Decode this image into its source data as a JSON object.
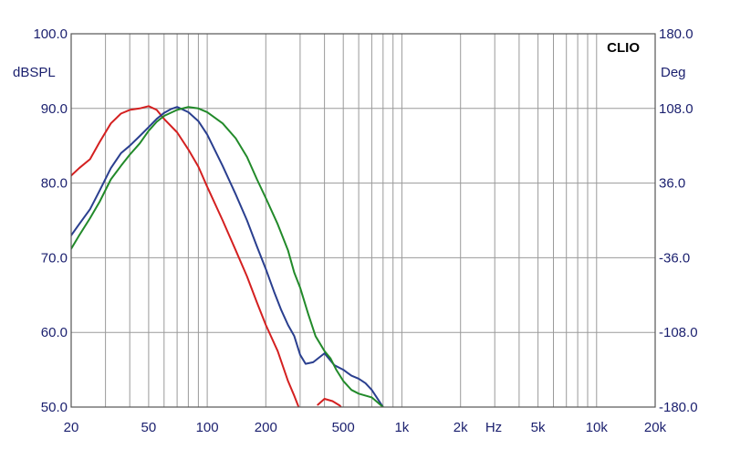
{
  "chart_data": {
    "type": "line",
    "title": "",
    "brand_label": "CLIO",
    "left_axis_label": "dBSPL",
    "right_axis_label": "Deg",
    "x_unit_label": "Hz",
    "x_scale": "log",
    "xlim": [
      20,
      20000
    ],
    "ylim": [
      50,
      100
    ],
    "y2lim": [
      -180,
      180
    ],
    "grid": true,
    "x_tick_labels": [
      {
        "value": 20,
        "label": "20"
      },
      {
        "value": 50,
        "label": "50"
      },
      {
        "value": 100,
        "label": "100"
      },
      {
        "value": 200,
        "label": "200"
      },
      {
        "value": 500,
        "label": "500"
      },
      {
        "value": 1000,
        "label": "1k"
      },
      {
        "value": 2000,
        "label": "2k"
      },
      {
        "value": 5000,
        "label": "5k"
      },
      {
        "value": 10000,
        "label": "10k"
      },
      {
        "value": 20000,
        "label": "20k"
      }
    ],
    "y_tick_labels": [
      {
        "value": 50,
        "label": "50.0"
      },
      {
        "value": 60,
        "label": "60.0"
      },
      {
        "value": 70,
        "label": "70.0"
      },
      {
        "value": 80,
        "label": "80.0"
      },
      {
        "value": 90,
        "label": "90.0"
      },
      {
        "value": 100,
        "label": "100.0"
      }
    ],
    "y2_tick_labels": [
      {
        "value": -180,
        "label": "-180.0"
      },
      {
        "value": -108,
        "label": "-108.0"
      },
      {
        "value": -36,
        "label": "-36.0"
      },
      {
        "value": 36,
        "label": "36.0"
      },
      {
        "value": 108,
        "label": "108.0"
      },
      {
        "value": 180,
        "label": "180.0"
      }
    ],
    "series": [
      {
        "color": "#d42020",
        "segments": [
          [
            [
              20,
              81
            ],
            [
              22,
              82
            ],
            [
              25,
              83.2
            ],
            [
              28,
              85.5
            ],
            [
              32,
              88
            ],
            [
              36,
              89.3
            ],
            [
              40,
              89.8
            ],
            [
              45,
              90
            ],
            [
              50,
              90.3
            ],
            [
              55,
              89.8
            ],
            [
              60,
              88.6
            ],
            [
              70,
              86.8
            ],
            [
              80,
              84.5
            ],
            [
              90,
              82.2
            ],
            [
              100,
              79.5
            ],
            [
              120,
              75
            ],
            [
              140,
              71
            ],
            [
              160,
              67.5
            ],
            [
              180,
              64
            ],
            [
              200,
              61
            ],
            [
              230,
              57.5
            ],
            [
              260,
              53.5
            ],
            [
              280,
              51.5
            ],
            [
              300,
              49.5
            ]
          ],
          [
            [
              370,
              50.3
            ],
            [
              400,
              51.1
            ],
            [
              440,
              50.8
            ],
            [
              480,
              50.2
            ],
            [
              500,
              49.6
            ]
          ]
        ]
      },
      {
        "color": "#2a3f8f",
        "segments": [
          [
            [
              20,
              73
            ],
            [
              22,
              74.5
            ],
            [
              25,
              76.5
            ],
            [
              28,
              79
            ],
            [
              32,
              82
            ],
            [
              36,
              84
            ],
            [
              40,
              85
            ],
            [
              45,
              86.3
            ],
            [
              50,
              87.5
            ],
            [
              55,
              88.6
            ],
            [
              60,
              89.4
            ],
            [
              65,
              89.9
            ],
            [
              70,
              90.2
            ],
            [
              80,
              89.5
            ],
            [
              90,
              88.3
            ],
            [
              100,
              86.5
            ],
            [
              120,
              82.3
            ],
            [
              140,
              78.5
            ],
            [
              160,
              75
            ],
            [
              180,
              71.5
            ],
            [
              200,
              68.5
            ],
            [
              220,
              65.5
            ],
            [
              240,
              63
            ],
            [
              260,
              61
            ],
            [
              280,
              59.5
            ],
            [
              300,
              57
            ],
            [
              320,
              55.8
            ],
            [
              350,
              56
            ],
            [
              400,
              57.2
            ],
            [
              450,
              55.6
            ],
            [
              500,
              55
            ],
            [
              550,
              54.2
            ],
            [
              600,
              53.8
            ],
            [
              650,
              53.2
            ],
            [
              700,
              52.3
            ],
            [
              800,
              50
            ]
          ]
        ]
      },
      {
        "color": "#228a2a",
        "segments": [
          [
            [
              20,
              71.2
            ],
            [
              22,
              73
            ],
            [
              25,
              75.3
            ],
            [
              28,
              77.5
            ],
            [
              32,
              80.5
            ],
            [
              36,
              82.3
            ],
            [
              40,
              83.8
            ],
            [
              45,
              85.3
            ],
            [
              50,
              87
            ],
            [
              55,
              88.2
            ],
            [
              60,
              89
            ],
            [
              70,
              89.8
            ],
            [
              80,
              90.2
            ],
            [
              90,
              90
            ],
            [
              100,
              89.5
            ],
            [
              120,
              88
            ],
            [
              140,
              86
            ],
            [
              160,
              83.5
            ],
            [
              180,
              80.5
            ],
            [
              200,
              78
            ],
            [
              230,
              74.5
            ],
            [
              260,
              71
            ],
            [
              280,
              68
            ],
            [
              300,
              66
            ],
            [
              330,
              62.5
            ],
            [
              360,
              59.5
            ],
            [
              400,
              57.5
            ],
            [
              430,
              56.5
            ],
            [
              460,
              55
            ],
            [
              500,
              53.5
            ],
            [
              550,
              52.3
            ],
            [
              600,
              51.8
            ],
            [
              700,
              51.3
            ],
            [
              800,
              50
            ]
          ]
        ]
      }
    ]
  }
}
